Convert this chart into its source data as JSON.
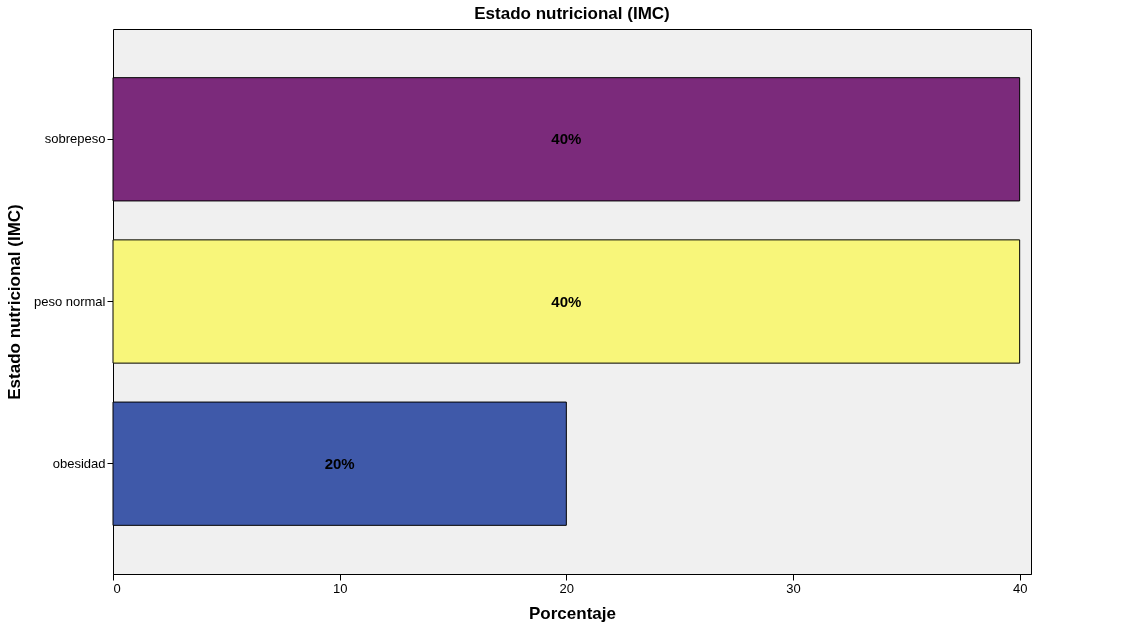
{
  "chart_data": {
    "type": "bar",
    "orientation": "horizontal",
    "title": "Estado nutricional (IMC)",
    "xlabel": "Porcentaje",
    "ylabel": "Estado nutricional (IMC)",
    "categories": [
      "sobrepeso",
      "peso normal",
      "obesidad"
    ],
    "values": [
      40,
      40,
      20
    ],
    "colors": [
      "#7b2a7b",
      "#f8f67a",
      "#3f59a9"
    ],
    "value_labels": [
      "40%",
      "40%",
      "20%"
    ],
    "xlim": [
      0,
      40.5
    ],
    "xticks": [
      0,
      10,
      20,
      30,
      40
    ]
  }
}
